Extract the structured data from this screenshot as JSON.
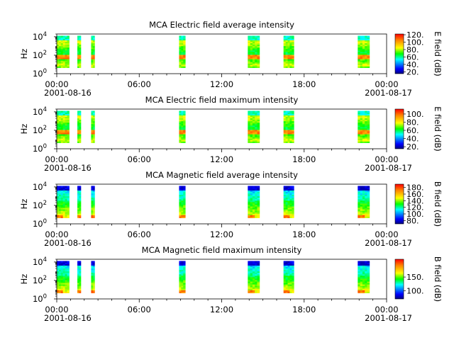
{
  "chart_data": [
    {
      "type": "heatmap",
      "title": "MCA  Electric field average intensity",
      "ylabel": "Hz",
      "y_scale": "log",
      "ylim": [
        1,
        20000
      ],
      "y_ticks": [
        "10^0",
        "10^2",
        "10^4"
      ],
      "xlim": [
        "2001-08-16 00:00",
        "2001-08-17 00:00"
      ],
      "x_ticks": [
        "00:00",
        "06:00",
        "12:00",
        "18:00",
        "00:00"
      ],
      "x_date_labels": [
        "2001-08-16",
        "2001-08-17"
      ],
      "colorbar": {
        "label": "E field (dB)",
        "range": [
          15,
          122
        ],
        "ticks": [
          "20.",
          "40.",
          "60.",
          "80.",
          "100.",
          "120."
        ]
      },
      "data_intervals_hours": [
        [
          0,
          0.9
        ],
        [
          1.5,
          1.75
        ],
        [
          2.5,
          2.75
        ],
        [
          8.9,
          9.35
        ],
        [
          13.9,
          14.75
        ],
        [
          16.5,
          17.25
        ],
        [
          21.9,
          22.75
        ]
      ]
    },
    {
      "type": "heatmap",
      "title": "MCA  Electric field maximum intensity",
      "ylabel": "Hz",
      "y_scale": "log",
      "ylim": [
        1,
        20000
      ],
      "y_ticks": [
        "10^0",
        "10^2",
        "10^4"
      ],
      "xlim": [
        "2001-08-16 00:00",
        "2001-08-17 00:00"
      ],
      "x_ticks": [
        "00:00",
        "06:00",
        "12:00",
        "18:00",
        "00:00"
      ],
      "x_date_labels": [
        "2001-08-16",
        "2001-08-17"
      ],
      "colorbar": {
        "label": "E field (dB)",
        "range": [
          15,
          112
        ],
        "ticks": [
          "20.",
          "40.",
          "60.",
          "80.",
          "100."
        ]
      },
      "data_intervals_hours": [
        [
          0,
          0.9
        ],
        [
          1.5,
          1.75
        ],
        [
          2.5,
          2.75
        ],
        [
          8.9,
          9.35
        ],
        [
          13.9,
          14.75
        ],
        [
          16.5,
          17.25
        ],
        [
          21.9,
          22.75
        ]
      ]
    },
    {
      "type": "heatmap",
      "title": "MCA  Magnetic field average intensity",
      "ylabel": "Hz",
      "y_scale": "log",
      "ylim": [
        1,
        20000
      ],
      "y_ticks": [
        "10^0",
        "10^2",
        "10^4"
      ],
      "xlim": [
        "2001-08-16 00:00",
        "2001-08-17 00:00"
      ],
      "x_ticks": [
        "00:00",
        "06:00",
        "12:00",
        "18:00",
        "00:00"
      ],
      "x_date_labels": [
        "2001-08-16",
        "2001-08-17"
      ],
      "colorbar": {
        "label": "B field (dB)",
        "range": [
          70,
          190
        ],
        "ticks": [
          "80.",
          "100.",
          "120.",
          "140.",
          "160.",
          "180."
        ]
      },
      "data_intervals_hours": [
        [
          0,
          0.9
        ],
        [
          1.5,
          1.75
        ],
        [
          2.5,
          2.75
        ],
        [
          8.9,
          9.35
        ],
        [
          13.9,
          14.75
        ],
        [
          16.5,
          17.25
        ],
        [
          21.9,
          22.75
        ]
      ]
    },
    {
      "type": "heatmap",
      "title": "MCA  Magnetic field maximum intensity",
      "ylabel": "Hz",
      "y_scale": "log",
      "ylim": [
        1,
        20000
      ],
      "y_ticks": [
        "10^0",
        "10^2",
        "10^4"
      ],
      "xlim": [
        "2001-08-16 00:00",
        "2001-08-17 00:00"
      ],
      "x_ticks": [
        "00:00",
        "06:00",
        "12:00",
        "18:00",
        "00:00"
      ],
      "x_date_labels": [
        "2001-08-16",
        "2001-08-17"
      ],
      "colorbar": {
        "label": "B field (dB)",
        "range": [
          70,
          215
        ],
        "ticks": [
          "100.",
          "150."
        ]
      },
      "data_intervals_hours": [
        [
          0,
          0.9
        ],
        [
          1.5,
          1.75
        ],
        [
          2.5,
          2.75
        ],
        [
          8.9,
          9.35
        ],
        [
          13.9,
          14.75
        ],
        [
          16.5,
          17.25
        ],
        [
          21.9,
          22.75
        ]
      ]
    }
  ],
  "colormap": {
    "name": "jet-like",
    "stops": [
      "#00007f",
      "#0000ff",
      "#00ffff",
      "#00ff00",
      "#ffff00",
      "#ff7f00",
      "#ff0000"
    ]
  }
}
